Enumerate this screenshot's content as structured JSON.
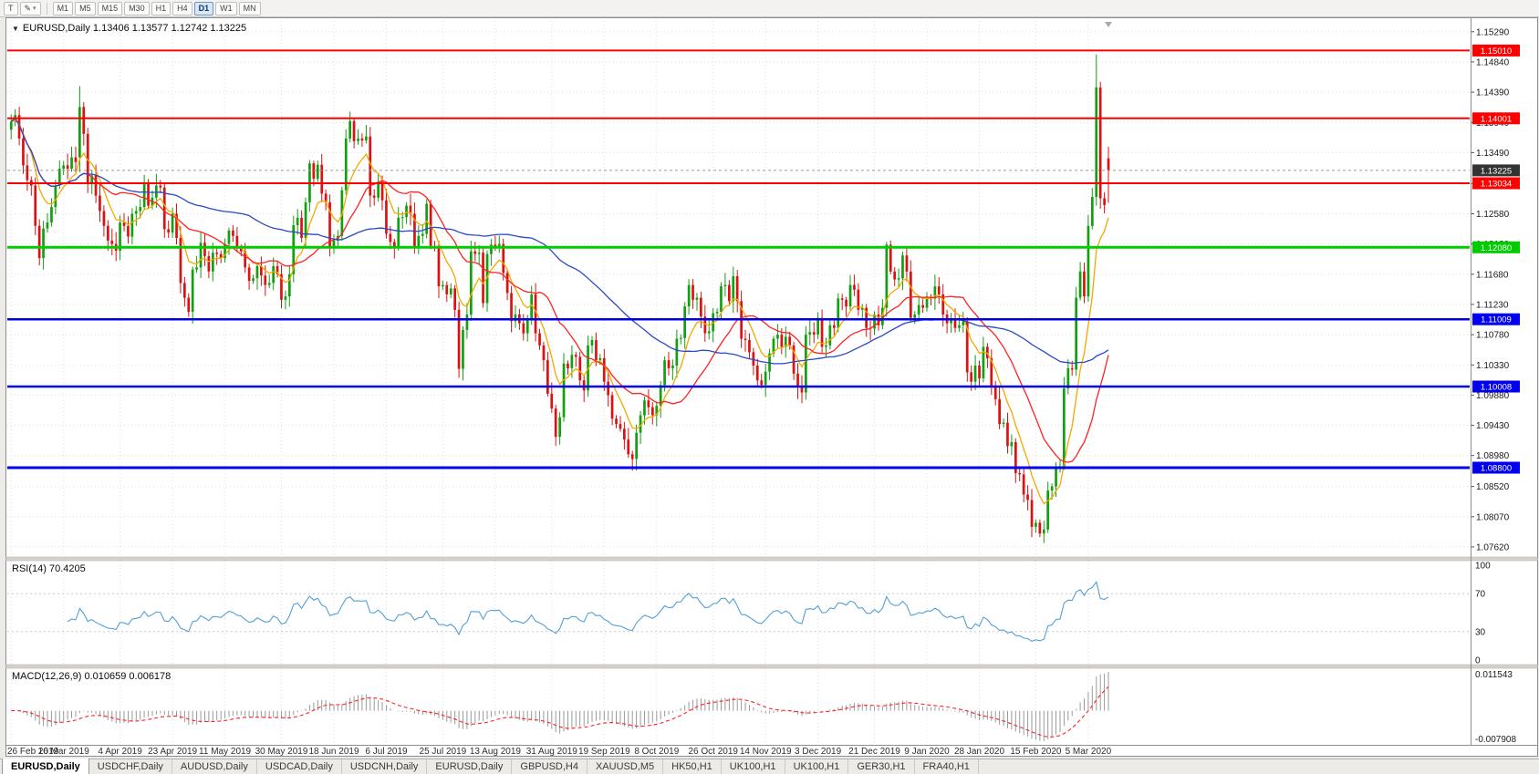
{
  "toolbar": {
    "chart_type_label": "T",
    "cursor_icon": "✎",
    "dropdown_icon": "▾",
    "timeframes": [
      "M1",
      "M5",
      "M15",
      "M30",
      "H1",
      "H4",
      "D1",
      "W1",
      "MN"
    ],
    "active_timeframe": "D1"
  },
  "chart": {
    "marker_icon": "▼",
    "header": "EURUSD,Daily  1.13406 1.13577 1.12742 1.13225"
  },
  "rsi": {
    "label": "RSI(14) 70.4205",
    "period": 14,
    "axis_labels": [
      "100",
      "70",
      "30",
      "0"
    ],
    "level_lines": [
      70,
      30
    ]
  },
  "macd": {
    "label": "MACD(12,26,9) 0.010659 0.006178",
    "fast": 12,
    "slow": 26,
    "signal": 9,
    "axis_top": "0.011543",
    "axis_bottom": "-0.007908"
  },
  "tabs": {
    "active_index": 0,
    "items": [
      "EURUSD,Daily",
      "USDCHF,Daily",
      "AUDUSD,Daily",
      "USDCAD,Daily",
      "USDCNH,Daily",
      "EURUSD,Daily",
      "GBPUSD,H4",
      "XAUUSD,M5",
      "HK50,H1",
      "UK100,H1",
      "UK100,H1",
      "GER30,H1",
      "FRA40,H1"
    ]
  },
  "chart_data": {
    "type": "candlestick",
    "symbol": "EURUSD",
    "timeframe": "Daily",
    "ohlc_current": {
      "open": 1.13406,
      "high": 1.13577,
      "low": 1.12742,
      "close": 1.13225
    },
    "y_range": [
      1.0747,
      1.1545
    ],
    "y_ticks": [
      "1.15290",
      "1.14840",
      "1.14390",
      "1.13940",
      "1.13490",
      "1.13030",
      "1.12580",
      "1.12130",
      "1.11680",
      "1.11230",
      "1.10780",
      "1.10330",
      "1.09880",
      "1.09430",
      "1.08980",
      "1.08520",
      "1.08070",
      "1.07620"
    ],
    "x_labels": [
      "26 Feb 2019",
      "16 Mar 2019",
      "4 Apr 2019",
      "23 Apr 2019",
      "11 May 2019",
      "30 May 2019",
      "18 Jun 2019",
      "6 Jul 2019",
      "25 Jul 2019",
      "13 Aug 2019",
      "31 Aug 2019",
      "19 Sep 2019",
      "8 Oct 2019",
      "26 Oct 2019",
      "14 Nov 2019",
      "3 Dec 2019",
      "21 Dec 2019",
      "9 Jan 2020",
      "28 Jan 2020",
      "15 Feb 2020",
      "5 Mar 2020"
    ],
    "x_label_indices": [
      0,
      13,
      27,
      40,
      53,
      67,
      80,
      93,
      107,
      120,
      134,
      147,
      160,
      174,
      187,
      200,
      214,
      227,
      240,
      254,
      267
    ],
    "data_width_ratio": 0.755,
    "closes": [
      1.1395,
      1.1405,
      1.137,
      1.133,
      1.1308,
      1.13,
      1.124,
      1.1192,
      1.1236,
      1.1245,
      1.1268,
      1.13,
      1.1325,
      1.133,
      1.1325,
      1.1342,
      1.1335,
      1.1417,
      1.1377,
      1.1302,
      1.1315,
      1.1285,
      1.1262,
      1.124,
      1.1218,
      1.1213,
      1.1203,
      1.1245,
      1.124,
      1.1224,
      1.1258,
      1.1262,
      1.1268,
      1.1305,
      1.127,
      1.1282,
      1.13,
      1.1297,
      1.1235,
      1.123,
      1.1258,
      1.1222,
      1.1155,
      1.1133,
      1.1112,
      1.1175,
      1.1178,
      1.1215,
      1.1195,
      1.1172,
      1.12,
      1.1198,
      1.1192,
      1.1213,
      1.1233,
      1.1225,
      1.1207,
      1.1202,
      1.1178,
      1.1158,
      1.1162,
      1.118,
      1.1166,
      1.1152,
      1.1155,
      1.118,
      1.1168,
      1.113,
      1.1135,
      1.1168,
      1.1241,
      1.1252,
      1.1222,
      1.1275,
      1.1333,
      1.131,
      1.1331,
      1.1288,
      1.1275,
      1.1208,
      1.1218,
      1.1225,
      1.1293,
      1.137,
      1.1396,
      1.1366,
      1.137,
      1.1367,
      1.1373,
      1.1285,
      1.1282,
      1.1306,
      1.1278,
      1.1228,
      1.1216,
      1.1208,
      1.1252,
      1.1253,
      1.127,
      1.1258,
      1.121,
      1.1225,
      1.1228,
      1.1273,
      1.121,
      1.1208,
      1.115,
      1.1152,
      1.1138,
      1.1147,
      1.1115,
      1.1027,
      1.1085,
      1.1108,
      1.1202,
      1.1198,
      1.12,
      1.1125,
      1.1198,
      1.1212,
      1.121,
      1.1213,
      1.117,
      1.114,
      1.1098,
      1.1108,
      1.1095,
      1.108,
      1.11,
      1.1138,
      1.108,
      1.1062,
      1.104,
      1.099,
      1.0968,
      1.0926,
      1.0955,
      1.1035,
      1.1028,
      1.1048,
      1.1045,
      1.101,
      1.0995,
      1.1062,
      1.107,
      1.104,
      1.1043,
      1.1008,
      1.0988,
      1.0953,
      1.0945,
      1.0938,
      1.0922,
      1.09,
      1.0893,
      1.0932,
      1.0958,
      1.098,
      1.097,
      1.0958,
      1.0972,
      1.1003,
      1.104,
      1.1028,
      1.1032,
      1.1072,
      1.1073,
      1.112,
      1.1152,
      1.113,
      1.1133,
      1.1105,
      1.108,
      1.1083,
      1.111,
      1.1112,
      1.115,
      1.1152,
      1.1128,
      1.1165,
      1.1128,
      1.1072,
      1.107,
      1.1052,
      1.1032,
      1.101,
      1.1003,
      1.1023,
      1.105,
      1.1072,
      1.1078,
      1.106,
      1.1075,
      1.1062,
      1.102,
      1.1,
      1.0992,
      1.1078,
      1.1082,
      1.1078,
      1.1103,
      1.106,
      1.1062,
      1.1092,
      1.1088,
      1.1132,
      1.113,
      1.112,
      1.1152,
      1.1145,
      1.1115,
      1.1118,
      1.1088,
      1.1087,
      1.1108,
      1.1092,
      1.1118,
      1.1212,
      1.1172,
      1.116,
      1.1162,
      1.1196,
      1.1172,
      1.1103,
      1.1108,
      1.1122,
      1.1118,
      1.1133,
      1.1132,
      1.115,
      1.1138,
      1.1108,
      1.1095,
      1.1102,
      1.1088,
      1.1092,
      1.1098,
      1.1022,
      1.1008,
      1.1032,
      1.1013,
      1.106,
      1.1043,
      1.1,
      1.0982,
      1.0945,
      1.0947,
      1.0912,
      1.0918,
      1.0872,
      1.087,
      1.084,
      1.0832,
      1.0792,
      1.0798,
      1.0782,
      1.0788,
      1.0846,
      1.0852,
      1.088,
      1.0882,
      1.0998,
      1.1028,
      1.1026,
      1.1133,
      1.1172,
      1.1135,
      1.124,
      1.1283,
      1.1446,
      1.1281,
      1.1271,
      1.1322
    ],
    "ohlc_overrides": {
      "17": [
        1.1342,
        1.1448,
        1.132,
        1.1417
      ],
      "269": [
        1.1283,
        1.1495,
        1.127,
        1.1446
      ],
      "272": [
        1.13406,
        1.13577,
        1.12742,
        1.13225
      ]
    },
    "hlines": [
      {
        "price": 1.1501,
        "label": "1.15010",
        "color": "#FF0000",
        "width": 2
      },
      {
        "price": 1.14001,
        "label": "1.14001",
        "color": "#FF0000",
        "width": 2
      },
      {
        "price": 1.13034,
        "label": "1.13034",
        "color": "#FF0000",
        "width": 2
      },
      {
        "price": 1.1208,
        "label": "1.12080",
        "color": "#00CC00",
        "width": 3
      },
      {
        "price": 1.11009,
        "label": "1.11009",
        "color": "#0000EE",
        "width": 2.5
      },
      {
        "price": 1.10008,
        "label": "1.10008",
        "color": "#0000EE",
        "width": 2.5
      },
      {
        "price": 1.088,
        "label": "1.08800",
        "color": "#0000EE",
        "width": 3
      }
    ],
    "current_price": 1.13225,
    "current_price_label": "1.13225",
    "ma_lines": [
      {
        "period": 8,
        "type": "ema",
        "color": "#F5A800"
      },
      {
        "period": 20,
        "type": "sma",
        "color": "#FF2222"
      },
      {
        "period": 60,
        "type": "sma",
        "color": "#2B48C8"
      }
    ],
    "colors": {
      "background": "#FFFFFF",
      "grid": "#DFDFDF",
      "bull": "#10A010",
      "bear": "#DD1111",
      "rsi_line": "#539FD6",
      "macd_hist": "#9A9A9A",
      "macd_signal": "#FF2222",
      "current_tag_bg": "#333333",
      "current_line": "#9A9A9A"
    }
  }
}
